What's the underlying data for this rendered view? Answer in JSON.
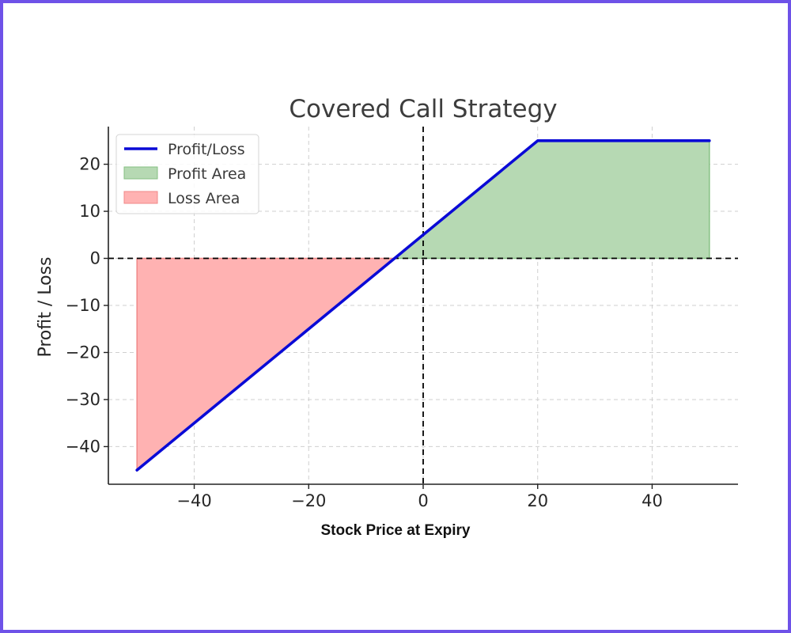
{
  "chart_data": {
    "type": "line",
    "title": "Covered Call Strategy",
    "xlabel": "Stock Price at Expiry",
    "ylabel": "Profit / Loss",
    "xlim": [
      -55,
      55
    ],
    "ylim": [
      -48,
      28
    ],
    "xticks": [
      -40,
      -20,
      0,
      20,
      40
    ],
    "yticks": [
      20,
      10,
      0,
      -10,
      -20,
      -30,
      -40
    ],
    "xtick_labels": [
      "−40",
      "−20",
      "0",
      "20",
      "40"
    ],
    "ytick_labels": [
      "20",
      "10",
      "0",
      "−10",
      "−20",
      "−30",
      "−40"
    ],
    "grid": true,
    "reference_lines": {
      "x": 0,
      "y": 0,
      "style": "dashed"
    },
    "series": [
      {
        "name": "Profit/Loss",
        "x": [
          -50,
          -5,
          0,
          20,
          50
        ],
        "y": [
          -45,
          0,
          5,
          25,
          25
        ],
        "color": "#0a0ad6"
      }
    ],
    "areas": [
      {
        "name": "Profit Area",
        "x": [
          -5,
          0,
          20,
          50
        ],
        "y": [
          0,
          5,
          25,
          25
        ],
        "color": "#b6d9b3",
        "edge": "#86c083"
      },
      {
        "name": "Loss Area",
        "x": [
          -50,
          -5
        ],
        "y": [
          -45,
          0
        ],
        "color": "#ffb2b2",
        "edge": "#f08888"
      }
    ],
    "legend": {
      "position": "top-left",
      "entries": [
        "Profit/Loss",
        "Profit Area",
        "Loss Area"
      ]
    }
  }
}
